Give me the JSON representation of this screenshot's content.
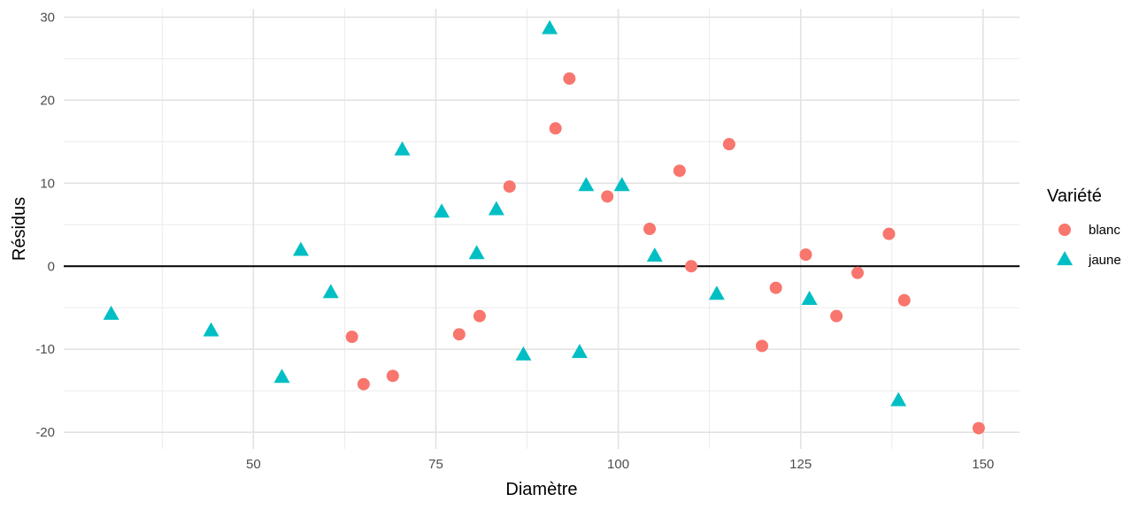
{
  "chart_data": {
    "type": "scatter",
    "xlabel": "Diamètre",
    "ylabel": "Résidus",
    "xlim": [
      24,
      155
    ],
    "ylim": [
      -22,
      31
    ],
    "x_ticks": [
      {
        "value": 50,
        "label": "50"
      },
      {
        "value": 75,
        "label": "75"
      },
      {
        "value": 100,
        "label": "100"
      },
      {
        "value": 125,
        "label": "125"
      },
      {
        "value": 150,
        "label": "150"
      }
    ],
    "y_ticks": [
      {
        "value": -20,
        "label": "-20"
      },
      {
        "value": -10,
        "label": "-10"
      },
      {
        "value": 0,
        "label": "0"
      },
      {
        "value": 10,
        "label": "10"
      },
      {
        "value": 20,
        "label": "20"
      },
      {
        "value": 30,
        "label": "30"
      }
    ],
    "x_minor": [
      37.5,
      62.5,
      87.5,
      112.5,
      137.5
    ],
    "y_minor": [
      -15,
      -5,
      5,
      15,
      25
    ],
    "grid": true,
    "hline": 0,
    "legend": {
      "title": "Variété",
      "position": "right"
    },
    "series": [
      {
        "name": "blanc",
        "color": "#F8766D",
        "shape": "circle",
        "points": [
          [
            63.5,
            -8.5
          ],
          [
            65.1,
            -14.2
          ],
          [
            69.1,
            -13.2
          ],
          [
            78.2,
            -8.2
          ],
          [
            81.0,
            -6.0
          ],
          [
            85.1,
            9.6
          ],
          [
            91.4,
            16.6
          ],
          [
            93.3,
            22.6
          ],
          [
            98.5,
            8.4
          ],
          [
            104.3,
            4.5
          ],
          [
            108.4,
            11.5
          ],
          [
            110.0,
            0.0
          ],
          [
            115.2,
            14.7
          ],
          [
            119.7,
            -9.6
          ],
          [
            121.6,
            -2.6
          ],
          [
            125.7,
            1.4
          ],
          [
            129.9,
            -6.0
          ],
          [
            132.8,
            -0.8
          ],
          [
            137.1,
            3.9
          ],
          [
            139.2,
            -4.1
          ],
          [
            149.4,
            -19.5
          ]
        ]
      },
      {
        "name": "jaune",
        "color": "#00BFC4",
        "shape": "triangle",
        "points": [
          [
            30.5,
            -5.8
          ],
          [
            44.2,
            -7.8
          ],
          [
            53.9,
            -13.4
          ],
          [
            56.5,
            1.9
          ],
          [
            60.6,
            -3.2
          ],
          [
            70.4,
            14.0
          ],
          [
            75.8,
            6.5
          ],
          [
            80.6,
            1.5
          ],
          [
            83.3,
            6.8
          ],
          [
            87.0,
            -10.7
          ],
          [
            90.6,
            28.6
          ],
          [
            94.7,
            -10.4
          ],
          [
            95.6,
            9.7
          ],
          [
            100.5,
            9.7
          ],
          [
            105.0,
            1.2
          ],
          [
            113.5,
            -3.4
          ],
          [
            126.2,
            -4.0
          ],
          [
            138.4,
            -16.2
          ]
        ]
      }
    ]
  }
}
